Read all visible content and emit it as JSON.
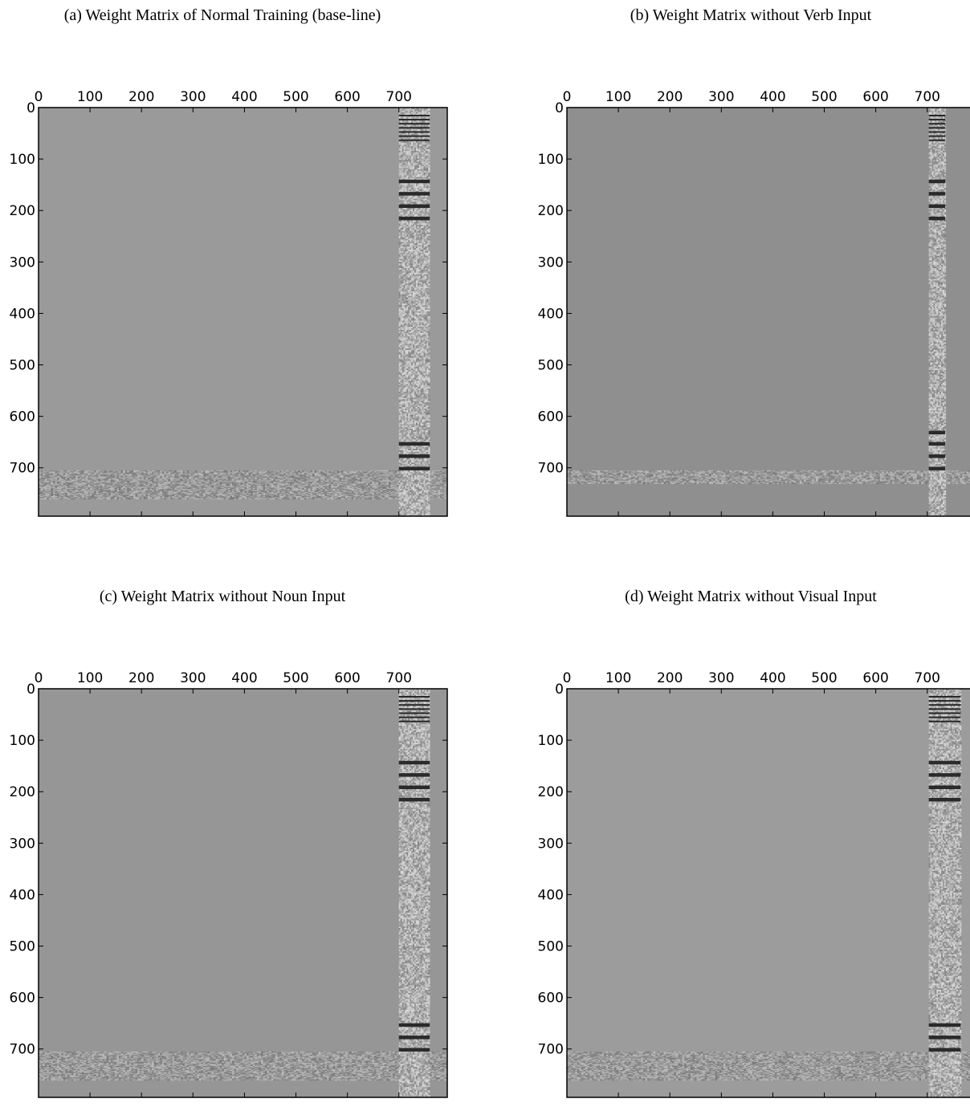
{
  "chart_data": [
    {
      "type": "heatmap",
      "title": "(a) Weight Matrix of Normal Training (base-line)",
      "x_ticks": [
        "0",
        "100",
        "200",
        "300",
        "400",
        "500",
        "600",
        "700"
      ],
      "y_ticks": [
        "0",
        "100",
        "200",
        "300",
        "400",
        "500",
        "600",
        "700"
      ],
      "xlim": [
        0,
        794
      ],
      "ylim": [
        0,
        794
      ],
      "x_axis_position": "top",
      "colormap": "grayscale",
      "background_value_color": "#9a9a9a",
      "noise_column": [
        700,
        760
      ],
      "noise_row": [
        705,
        760
      ],
      "dark_bands_y": [
        14,
        22,
        30,
        38,
        46,
        54,
        62,
        140,
        164,
        188,
        212,
        650,
        674,
        698
      ]
    },
    {
      "type": "heatmap",
      "title": "(b) Weight Matrix without Verb Input",
      "x_ticks": [
        "0",
        "100",
        "200",
        "300",
        "400",
        "500",
        "600",
        "700"
      ],
      "y_ticks": [
        "0",
        "100",
        "200",
        "300",
        "400",
        "500",
        "600",
        "700"
      ],
      "xlim": [
        0,
        794
      ],
      "ylim": [
        0,
        794
      ],
      "x_axis_position": "top",
      "colormap": "grayscale",
      "background_value_color": "#8f8f8f",
      "noise_column": [
        703,
        735
      ],
      "noise_row": [
        705,
        730
      ],
      "dark_bands_y": [
        14,
        22,
        30,
        38,
        46,
        54,
        62,
        140,
        164,
        188,
        212,
        628,
        650,
        674,
        698
      ]
    },
    {
      "type": "heatmap",
      "title": "(c) Weight Matrix without Noun Input",
      "x_ticks": [
        "0",
        "100",
        "200",
        "300",
        "400",
        "500",
        "600",
        "700"
      ],
      "y_ticks": [
        "0",
        "100",
        "200",
        "300",
        "400",
        "500",
        "600",
        "700"
      ],
      "xlim": [
        0,
        794
      ],
      "ylim": [
        0,
        794
      ],
      "x_axis_position": "top",
      "colormap": "grayscale",
      "background_value_color": "#969696",
      "noise_column": [
        700,
        760
      ],
      "noise_row": [
        705,
        760
      ],
      "dark_bands_y": [
        14,
        22,
        30,
        38,
        46,
        54,
        62,
        140,
        164,
        188,
        212,
        650,
        674,
        698
      ]
    },
    {
      "type": "heatmap",
      "title": "(d) Weight Matrix without Visual Input",
      "x_ticks": [
        "0",
        "100",
        "200",
        "300",
        "400",
        "500",
        "600",
        "700"
      ],
      "y_ticks": [
        "0",
        "100",
        "200",
        "300",
        "400",
        "500",
        "600",
        "700"
      ],
      "xlim": [
        0,
        794
      ],
      "ylim": [
        0,
        794
      ],
      "x_axis_position": "top",
      "colormap": "grayscale",
      "background_value_color": "#9c9c9c",
      "noise_column": [
        703,
        765
      ],
      "noise_row": [
        705,
        760
      ],
      "dark_bands_y": [
        14,
        22,
        30,
        38,
        46,
        54,
        62,
        140,
        164,
        188,
        212,
        650,
        674,
        698
      ]
    }
  ]
}
